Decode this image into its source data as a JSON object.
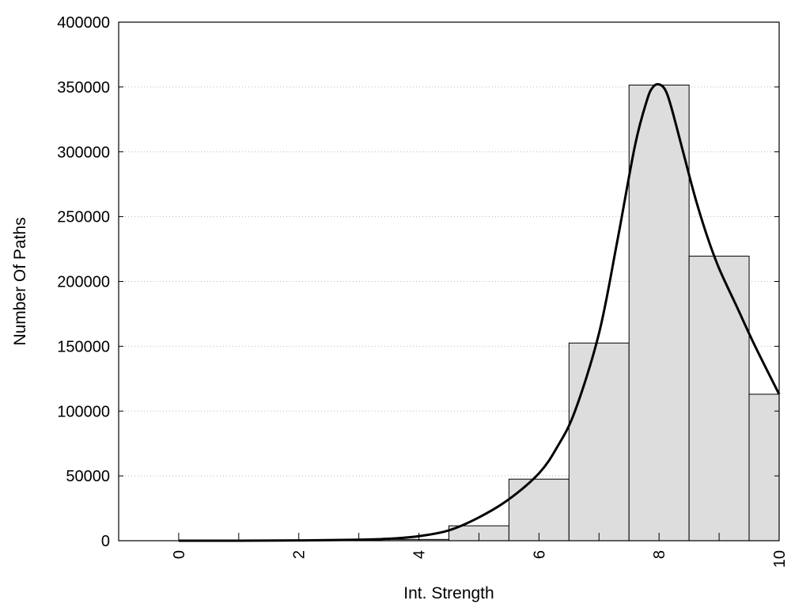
{
  "chart_data": {
    "type": "bar",
    "title": "",
    "xlabel": "Int. Strength",
    "ylabel": "Number Of Paths",
    "xlim": [
      -1,
      10
    ],
    "ylim": [
      0,
      400000
    ],
    "x_ticks": [
      0,
      2,
      4,
      6,
      8,
      10
    ],
    "x_tick_labels": [
      "0",
      "2",
      "4",
      "6",
      "8",
      "10"
    ],
    "y_ticks": [
      0,
      50000,
      100000,
      150000,
      200000,
      250000,
      300000,
      350000,
      400000
    ],
    "y_tick_labels": [
      "0",
      "50000",
      "100000",
      "150000",
      "200000",
      "250000",
      "300000",
      "350000",
      "400000"
    ],
    "grid": "horizontal dotted",
    "bar_fill": "#dddddd",
    "bar_stroke": "#000000",
    "line_color": "#000000",
    "bars": {
      "centers": [
        0,
        1,
        2,
        3,
        4,
        5,
        6,
        7,
        8,
        9,
        10
      ],
      "width": 1,
      "values": [
        0,
        0,
        0,
        0,
        1000,
        11500,
        47500,
        152500,
        351500,
        219500,
        113000
      ]
    },
    "curve": {
      "x": [
        0,
        1,
        2,
        3,
        3.5,
        4,
        4.5,
        5,
        5.5,
        6,
        6.3,
        6.6,
        7,
        7.3,
        7.6,
        7.8,
        7.9,
        8,
        8.1,
        8.2,
        8.4,
        8.6,
        8.8,
        9,
        9.3,
        9.6,
        10
      ],
      "y": [
        0,
        0,
        200,
        800,
        1500,
        3500,
        8000,
        18000,
        32000,
        52000,
        72000,
        100000,
        160000,
        230000,
        305000,
        340000,
        350000,
        352000,
        348000,
        335000,
        300000,
        265000,
        235000,
        210000,
        180000,
        150000,
        113000
      ]
    }
  }
}
